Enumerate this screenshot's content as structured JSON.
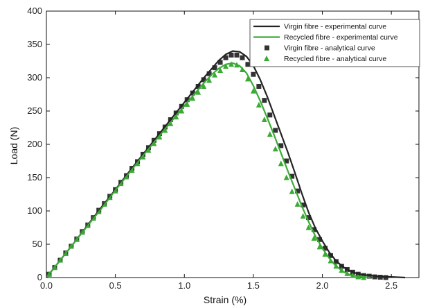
{
  "chart_data": {
    "type": "line",
    "xlabel": "Strain (%)",
    "ylabel": "Load (N)",
    "xlim": [
      0,
      2.7
    ],
    "ylim": [
      0,
      400
    ],
    "xticks": [
      "0.0",
      "0.5",
      "1.0",
      "1.5",
      "2.0",
      "2.5"
    ],
    "yticks": [
      "0",
      "50",
      "100",
      "150",
      "200",
      "250",
      "300",
      "350",
      "400"
    ],
    "grid": false,
    "legend_position": "top-right",
    "series": [
      {
        "name": "Virgin fibre - experimental curve",
        "style": "line",
        "color": "#222222",
        "x": [
          0,
          0.1,
          0.2,
          0.3,
          0.4,
          0.5,
          0.6,
          0.7,
          0.8,
          0.9,
          1.0,
          1.05,
          1.1,
          1.15,
          1.2,
          1.25,
          1.3,
          1.35,
          1.4,
          1.45,
          1.5,
          1.55,
          1.6,
          1.65,
          1.7,
          1.75,
          1.8,
          1.85,
          1.9,
          1.95,
          2.0,
          2.05,
          2.1,
          2.15,
          2.2,
          2.25,
          2.3,
          2.4,
          2.5,
          2.6
        ],
        "y": [
          0,
          26,
          52,
          79,
          106,
          132,
          159,
          185,
          211,
          237,
          263,
          276,
          289,
          302,
          314,
          326,
          335,
          340,
          339,
          332,
          318,
          297,
          272,
          244,
          216,
          188,
          158,
          127,
          98,
          74,
          55,
          38,
          25,
          16,
          10,
          6,
          4,
          2,
          1,
          0
        ]
      },
      {
        "name": "Recycled fibre - experimental curve",
        "style": "line",
        "color": "#3aaa35",
        "x": [
          0,
          0.1,
          0.2,
          0.3,
          0.4,
          0.5,
          0.6,
          0.7,
          0.8,
          0.9,
          1.0,
          1.05,
          1.1,
          1.15,
          1.2,
          1.25,
          1.3,
          1.35,
          1.4,
          1.45,
          1.5,
          1.55,
          1.6,
          1.65,
          1.7,
          1.75,
          1.8,
          1.85,
          1.9,
          1.95,
          2.0,
          2.05,
          2.1,
          2.15,
          2.2,
          2.25,
          2.3,
          2.35
        ],
        "y": [
          0,
          26,
          52,
          78,
          104,
          131,
          157,
          183,
          208,
          233,
          258,
          270,
          282,
          294,
          305,
          314,
          320,
          322,
          318,
          307,
          288,
          265,
          240,
          214,
          187,
          160,
          134,
          108,
          84,
          62,
          44,
          29,
          17,
          9,
          4,
          2,
          1,
          0
        ]
      },
      {
        "name": "Virgin fibre - analytical curve",
        "style": "square",
        "color": "#333333",
        "x": [
          0.02,
          0.06,
          0.1,
          0.14,
          0.18,
          0.22,
          0.26,
          0.3,
          0.34,
          0.38,
          0.42,
          0.46,
          0.5,
          0.54,
          0.58,
          0.62,
          0.66,
          0.7,
          0.74,
          0.78,
          0.82,
          0.86,
          0.9,
          0.94,
          0.98,
          1.02,
          1.06,
          1.1,
          1.14,
          1.18,
          1.22,
          1.26,
          1.3,
          1.34,
          1.38,
          1.42,
          1.46,
          1.5,
          1.54,
          1.58,
          1.62,
          1.66,
          1.7,
          1.74,
          1.78,
          1.82,
          1.86,
          1.9,
          1.94,
          1.98,
          2.02,
          2.06,
          2.1,
          2.14,
          2.18,
          2.22,
          2.26,
          2.3,
          2.34,
          2.38,
          2.42,
          2.46
        ],
        "y": [
          5,
          15,
          26,
          37,
          47,
          58,
          69,
          79,
          90,
          101,
          111,
          122,
          132,
          143,
          153,
          164,
          174,
          185,
          195,
          206,
          216,
          226,
          237,
          247,
          257,
          267,
          277,
          287,
          297,
          306,
          315,
          323,
          330,
          334,
          334,
          330,
          320,
          305,
          287,
          266,
          244,
          221,
          198,
          175,
          152,
          130,
          109,
          90,
          72,
          57,
          44,
          33,
          24,
          17,
          12,
          8,
          5,
          3,
          2,
          1,
          0.5,
          0
        ]
      },
      {
        "name": "Recycled fibre - analytical curve",
        "style": "triangle",
        "color": "#3aaa35",
        "x": [
          0.02,
          0.06,
          0.1,
          0.14,
          0.18,
          0.22,
          0.26,
          0.3,
          0.34,
          0.38,
          0.42,
          0.46,
          0.5,
          0.54,
          0.58,
          0.62,
          0.66,
          0.7,
          0.74,
          0.78,
          0.82,
          0.86,
          0.9,
          0.94,
          0.98,
          1.02,
          1.06,
          1.1,
          1.14,
          1.18,
          1.22,
          1.26,
          1.3,
          1.34,
          1.38,
          1.42,
          1.46,
          1.5,
          1.54,
          1.58,
          1.62,
          1.66,
          1.7,
          1.74,
          1.78,
          1.82,
          1.86,
          1.9,
          1.94,
          1.98,
          2.02,
          2.06,
          2.1,
          2.14,
          2.18,
          2.22,
          2.26,
          2.3
        ],
        "y": [
          5,
          15,
          26,
          36,
          47,
          57,
          68,
          78,
          89,
          99,
          110,
          120,
          130,
          141,
          151,
          161,
          171,
          181,
          191,
          201,
          211,
          221,
          231,
          241,
          250,
          260,
          269,
          278,
          287,
          296,
          304,
          311,
          317,
          320,
          319,
          312,
          298,
          280,
          259,
          237,
          215,
          193,
          171,
          150,
          129,
          110,
          92,
          75,
          59,
          46,
          35,
          25,
          17,
          11,
          6,
          3,
          1,
          0
        ]
      }
    ]
  }
}
